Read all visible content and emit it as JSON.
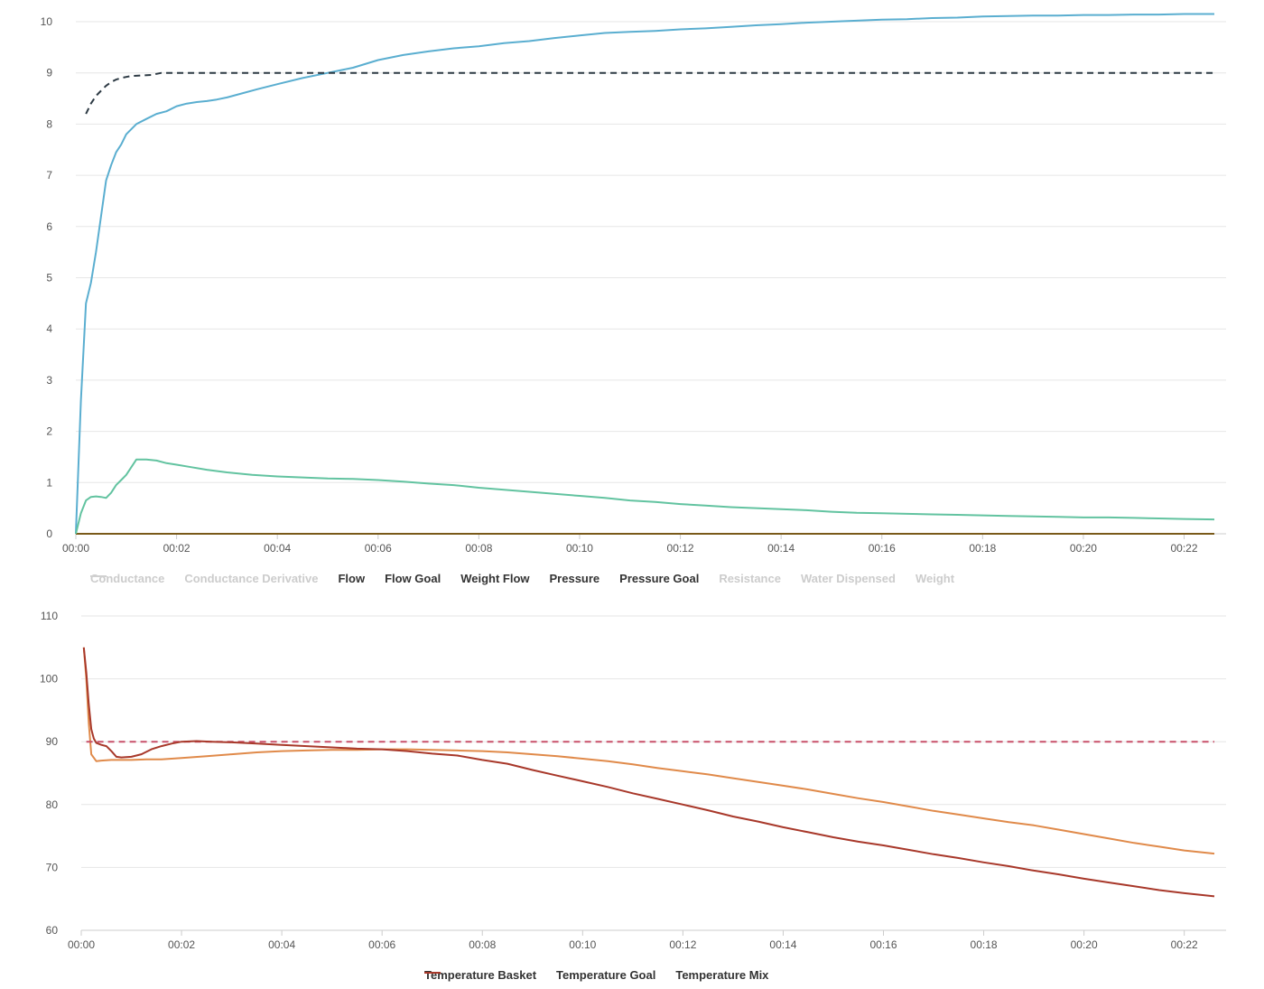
{
  "chart_data": [
    {
      "type": "line",
      "x_tick_labels": [
        "00:00",
        "00:02",
        "00:04",
        "00:06",
        "00:08",
        "00:10",
        "00:12",
        "00:14",
        "00:16",
        "00:18",
        "00:20",
        "00:22"
      ],
      "y_tick_labels": [
        "0",
        "1",
        "2",
        "3",
        "4",
        "5",
        "6",
        "7",
        "8",
        "9",
        "10"
      ],
      "xlim": [
        0,
        22.6
      ],
      "ylim": [
        0,
        10
      ],
      "grid": true,
      "legend_position": "bottom",
      "series": [
        {
          "name": "Conductance",
          "visible": false,
          "dash": true,
          "color": "#cfcfcf",
          "x": [],
          "y": []
        },
        {
          "name": "Conductance Derivative",
          "visible": false,
          "dash": false,
          "color": "#cfcfcf",
          "x": [],
          "y": []
        },
        {
          "name": "Flow",
          "visible": true,
          "dash": false,
          "color": "#5aaed0",
          "x": [
            0,
            0.1,
            0.2,
            0.3,
            0.4,
            0.5,
            0.6,
            0.7,
            0.8,
            0.9,
            1.0,
            1.2,
            1.4,
            1.6,
            1.8,
            2.0,
            2.2,
            2.4,
            2.6,
            2.8,
            3.0,
            3.3,
            3.6,
            4.0,
            4.5,
            5.0,
            5.5,
            6.0,
            6.5,
            7.0,
            7.5,
            8.0,
            8.5,
            9.0,
            9.5,
            10.0,
            10.5,
            11.0,
            11.5,
            12.0,
            12.5,
            13.0,
            13.5,
            14.0,
            14.5,
            15.0,
            15.5,
            16.0,
            16.5,
            17.0,
            17.5,
            18.0,
            18.5,
            19.0,
            19.5,
            20.0,
            20.5,
            21.0,
            21.5,
            22.0,
            22.6
          ],
          "y": [
            0,
            2.6,
            4.5,
            4.9,
            5.5,
            6.2,
            6.9,
            7.2,
            7.45,
            7.6,
            7.8,
            8.0,
            8.1,
            8.2,
            8.25,
            8.35,
            8.4,
            8.43,
            8.45,
            8.48,
            8.52,
            8.6,
            8.68,
            8.78,
            8.9,
            9.0,
            9.1,
            9.25,
            9.35,
            9.42,
            9.48,
            9.52,
            9.58,
            9.62,
            9.68,
            9.73,
            9.78,
            9.8,
            9.82,
            9.85,
            9.87,
            9.9,
            9.93,
            9.95,
            9.98,
            10.0,
            10.02,
            10.04,
            10.05,
            10.07,
            10.08,
            10.1,
            10.11,
            10.12,
            10.12,
            10.13,
            10.13,
            10.14,
            10.14,
            10.15,
            10.15
          ]
        },
        {
          "name": "Flow Goal",
          "visible": true,
          "dash": true,
          "color": "#2d3a44",
          "x": [
            0.2,
            0.3,
            0.4,
            0.5,
            0.6,
            0.7,
            0.8,
            0.9,
            1.0,
            1.1,
            1.3,
            1.5,
            1.6,
            1.7,
            2.0,
            4.0,
            8.0,
            12.0,
            16.0,
            20.0,
            22.6
          ],
          "y": [
            8.2,
            8.4,
            8.55,
            8.65,
            8.75,
            8.82,
            8.87,
            8.9,
            8.92,
            8.94,
            8.95,
            8.96,
            8.98,
            9.0,
            9.0,
            9.0,
            9.0,
            9.0,
            9.0,
            9.0,
            9.0
          ]
        },
        {
          "name": "Weight Flow",
          "visible": true,
          "dash": false,
          "color": "#7a5a1a",
          "x": [
            0,
            22.6
          ],
          "y": [
            0,
            0
          ]
        },
        {
          "name": "Pressure",
          "visible": true,
          "dash": false,
          "color": "#62c3a0",
          "x": [
            0,
            0.1,
            0.2,
            0.3,
            0.4,
            0.5,
            0.6,
            0.7,
            0.8,
            0.9,
            1.0,
            1.1,
            1.2,
            1.3,
            1.4,
            1.6,
            1.8,
            2.0,
            2.3,
            2.6,
            3.0,
            3.5,
            4.0,
            4.5,
            5.0,
            5.5,
            6.0,
            6.5,
            7.0,
            7.5,
            8.0,
            8.5,
            9.0,
            9.5,
            10.0,
            10.5,
            11.0,
            11.5,
            12.0,
            12.5,
            13.0,
            13.5,
            14.0,
            14.5,
            15.0,
            15.5,
            16.0,
            16.5,
            17.0,
            17.5,
            18.0,
            18.5,
            19.0,
            19.5,
            20.0,
            20.5,
            21.0,
            21.5,
            22.0,
            22.6
          ],
          "y": [
            0,
            0.4,
            0.65,
            0.72,
            0.73,
            0.72,
            0.7,
            0.8,
            0.95,
            1.05,
            1.15,
            1.3,
            1.45,
            1.45,
            1.45,
            1.43,
            1.38,
            1.35,
            1.3,
            1.25,
            1.2,
            1.15,
            1.12,
            1.1,
            1.08,
            1.07,
            1.05,
            1.02,
            0.98,
            0.95,
            0.9,
            0.86,
            0.82,
            0.78,
            0.74,
            0.7,
            0.65,
            0.62,
            0.58,
            0.55,
            0.52,
            0.5,
            0.48,
            0.46,
            0.43,
            0.41,
            0.4,
            0.39,
            0.38,
            0.37,
            0.36,
            0.35,
            0.34,
            0.33,
            0.32,
            0.32,
            0.31,
            0.3,
            0.29,
            0.28
          ]
        },
        {
          "name": "Pressure Goal",
          "visible": true,
          "dash": true,
          "color": "#2d3a44",
          "x": [],
          "y": []
        },
        {
          "name": "Resistance",
          "visible": false,
          "dash": false,
          "color": "#cfcfcf",
          "x": [],
          "y": []
        },
        {
          "name": "Water Dispensed",
          "visible": false,
          "dash": false,
          "color": "#cfcfcf",
          "x": [],
          "y": []
        },
        {
          "name": "Weight",
          "visible": false,
          "dash": false,
          "color": "#cfcfcf",
          "x": [],
          "y": []
        }
      ]
    },
    {
      "type": "line",
      "x_tick_labels": [
        "00:00",
        "00:02",
        "00:04",
        "00:06",
        "00:08",
        "00:10",
        "00:12",
        "00:14",
        "00:16",
        "00:18",
        "00:20",
        "00:22"
      ],
      "y_tick_labels": [
        "60",
        "70",
        "80",
        "90",
        "100",
        "110"
      ],
      "xlim": [
        0,
        22.6
      ],
      "ylim": [
        60,
        110
      ],
      "grid": true,
      "legend_position": "bottom",
      "series": [
        {
          "name": "Temperature Basket",
          "visible": true,
          "dash": false,
          "color": "#e08a4a",
          "x": [
            0.05,
            0.1,
            0.15,
            0.2,
            0.3,
            0.4,
            0.6,
            0.8,
            1.0,
            1.3,
            1.6,
            2.0,
            2.5,
            3.0,
            3.5,
            4.0,
            4.5,
            5.0,
            5.5,
            6.0,
            6.5,
            7.0,
            7.5,
            8.0,
            8.5,
            9.0,
            9.5,
            10.0,
            10.5,
            11.0,
            11.5,
            12.0,
            12.5,
            13.0,
            13.5,
            14.0,
            14.5,
            15.0,
            15.5,
            16.0,
            16.5,
            17.0,
            17.5,
            18.0,
            18.5,
            19.0,
            19.5,
            20.0,
            20.5,
            21.0,
            21.5,
            22.0,
            22.6
          ],
          "y": [
            105,
            100,
            93,
            88,
            86.9,
            87.0,
            87.1,
            87.1,
            87.1,
            87.2,
            87.2,
            87.4,
            87.7,
            88.0,
            88.3,
            88.5,
            88.6,
            88.7,
            88.7,
            88.8,
            88.8,
            88.7,
            88.6,
            88.5,
            88.3,
            88.0,
            87.7,
            87.3,
            86.9,
            86.4,
            85.8,
            85.3,
            84.8,
            84.2,
            83.6,
            83.0,
            82.4,
            81.7,
            81.0,
            80.4,
            79.7,
            79.0,
            78.4,
            77.8,
            77.2,
            76.7,
            76.0,
            75.3,
            74.6,
            73.9,
            73.3,
            72.7,
            72.2
          ]
        },
        {
          "name": "Temperature Goal",
          "visible": true,
          "dash": true,
          "color": "#c8506a",
          "x": [
            0.1,
            22.6
          ],
          "y": [
            90,
            90
          ]
        },
        {
          "name": "Temperature Mix",
          "visible": true,
          "dash": false,
          "color": "#a8382a",
          "x": [
            0.05,
            0.1,
            0.15,
            0.2,
            0.25,
            0.3,
            0.4,
            0.5,
            0.6,
            0.7,
            0.8,
            1.0,
            1.2,
            1.4,
            1.6,
            1.8,
            2.0,
            2.3,
            2.6,
            3.0,
            3.5,
            4.0,
            4.5,
            5.0,
            5.5,
            6.0,
            6.5,
            7.0,
            7.5,
            8.0,
            8.5,
            9.0,
            9.5,
            10.0,
            10.5,
            11.0,
            11.5,
            12.0,
            12.5,
            13.0,
            13.5,
            14.0,
            14.5,
            15.0,
            15.5,
            16.0,
            16.5,
            17.0,
            17.5,
            18.0,
            18.5,
            19.0,
            19.5,
            20.0,
            20.5,
            21.0,
            21.5,
            22.0,
            22.6
          ],
          "y": [
            105,
            101,
            96,
            92,
            90.5,
            89.8,
            89.5,
            89.3,
            88.5,
            87.6,
            87.5,
            87.6,
            88.0,
            88.8,
            89.3,
            89.7,
            90.0,
            90.1,
            90.0,
            89.9,
            89.7,
            89.5,
            89.3,
            89.1,
            88.9,
            88.8,
            88.5,
            88.1,
            87.8,
            87.1,
            86.5,
            85.5,
            84.6,
            83.7,
            82.8,
            81.8,
            80.9,
            80.0,
            79.1,
            78.1,
            77.3,
            76.4,
            75.6,
            74.8,
            74.1,
            73.5,
            72.8,
            72.1,
            71.5,
            70.8,
            70.2,
            69.5,
            68.9,
            68.2,
            67.6,
            67.0,
            66.4,
            65.9,
            65.4
          ]
        }
      ]
    }
  ]
}
